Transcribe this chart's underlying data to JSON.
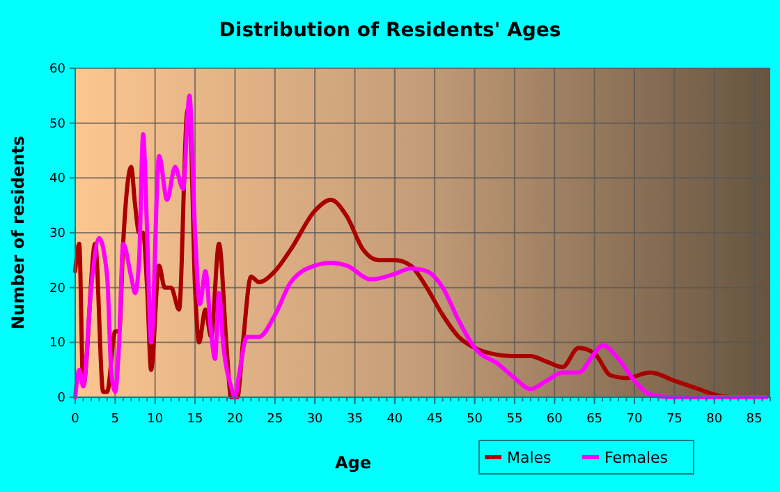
{
  "chart_data": {
    "type": "line",
    "title": "Distribution of Residents' Ages",
    "xlabel": "Age",
    "ylabel": "Number of residents",
    "xlim": [
      0,
      87
    ],
    "xticks": [
      0,
      5,
      10,
      15,
      20,
      25,
      30,
      35,
      40,
      45,
      50,
      55,
      60,
      65,
      70,
      75,
      80,
      85
    ],
    "ylim": [
      0,
      60
    ],
    "yticks": [
      0,
      10,
      20,
      30,
      40,
      50,
      60
    ],
    "grid": true,
    "legend": "bottom right",
    "marker": "none",
    "line_style": "solid",
    "series": [
      {
        "name": "Males",
        "color": "#aa0000",
        "x": [
          0,
          0.5,
          1,
          2.5,
          3.5,
          4,
          5,
          5.5,
          6,
          7,
          7.5,
          8,
          8.5,
          9,
          9.5,
          10.5,
          11.2,
          12,
          13,
          14,
          14.3,
          15,
          15.5,
          16.3,
          17,
          18,
          19,
          19.5,
          20.3,
          21,
          22,
          23,
          25,
          27,
          30,
          32,
          34,
          36,
          38,
          40,
          42,
          44,
          46,
          48,
          50,
          52,
          55,
          57,
          59,
          61,
          63,
          65,
          67,
          69,
          72,
          75,
          78,
          80,
          82,
          86.5
        ],
        "values": [
          23,
          28,
          2,
          28,
          1,
          1,
          12,
          12,
          28,
          42,
          35,
          30,
          30,
          20,
          5,
          24,
          20,
          20,
          16,
          52,
          53,
          20,
          10,
          16,
          11,
          28,
          8,
          0,
          0,
          10,
          22,
          21,
          23,
          27,
          34,
          36,
          33,
          27,
          25,
          25,
          24,
          20,
          15,
          11,
          9,
          8,
          7.5,
          7.5,
          6.5,
          5.5,
          9,
          8,
          4,
          3.5,
          4.5,
          3,
          1.5,
          0.5,
          0,
          0
        ]
      },
      {
        "name": "Females",
        "color": "#ff00ff",
        "x": [
          0,
          0.5,
          1,
          2,
          3,
          4,
          4.5,
          5,
          5.5,
          6,
          7,
          7.5,
          8,
          8.5,
          9,
          9.5,
          10.5,
          11.5,
          12.5,
          13.5,
          14.3,
          15,
          15.6,
          16.3,
          17,
          17.5,
          18,
          18.5,
          19.5,
          20,
          20.5,
          21.5,
          23,
          25,
          27,
          30,
          32,
          34,
          37,
          40,
          42,
          44,
          46,
          48,
          50,
          53,
          55,
          57,
          59,
          61,
          63,
          65,
          66,
          68,
          70,
          72,
          75,
          86.5
        ],
        "values": [
          0,
          5,
          2,
          20,
          29,
          22,
          5,
          1,
          10,
          28,
          22,
          19,
          25,
          48,
          30,
          10,
          44,
          36,
          42,
          38,
          55,
          30,
          17,
          23,
          12,
          7,
          19,
          10,
          2,
          0,
          4,
          11,
          11,
          15,
          21,
          24,
          24.5,
          24,
          21.5,
          22.5,
          23.5,
          23,
          20,
          14,
          9,
          6,
          3.5,
          1.5,
          3,
          4.5,
          4.5,
          8,
          9.5,
          7,
          3,
          0.5,
          0,
          0
        ]
      }
    ]
  }
}
